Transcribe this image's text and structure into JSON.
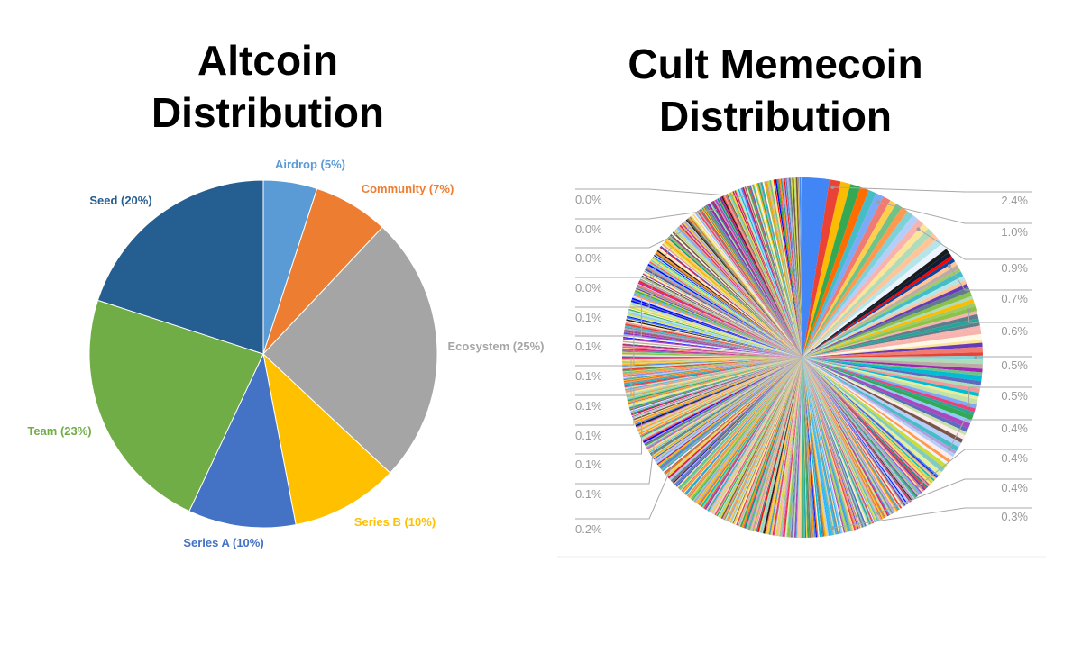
{
  "titles": {
    "left_line1": "Altcoin",
    "left_line2": "Distribution",
    "right_line1": "Cult Memecoin",
    "right_line2": "Distribution"
  },
  "chart_data": [
    {
      "type": "pie",
      "title": "Altcoin Distribution",
      "slices": [
        {
          "label": "Airdrop (5%)",
          "value": 5,
          "color": "#5b9bd5"
        },
        {
          "label": "Community (7%)",
          "value": 7,
          "color": "#ed7d31"
        },
        {
          "label": "Ecosystem (25%)",
          "value": 25,
          "color": "#a5a5a5"
        },
        {
          "label": "Series B (10%)",
          "value": 10,
          "color": "#ffc000"
        },
        {
          "label": "Series A (10%)",
          "value": 10,
          "color": "#4472c4"
        },
        {
          "label": "Team (23%)",
          "value": 23,
          "color": "#70ad47"
        },
        {
          "label": "Seed (20%)",
          "value": 20,
          "color": "#255e91"
        }
      ]
    },
    {
      "type": "pie",
      "title": "Cult Memecoin Distribution",
      "right_labels": [
        "2.4%",
        "1.0%",
        "0.9%",
        "0.7%",
        "0.6%",
        "0.5%",
        "0.5%",
        "0.4%",
        "0.4%",
        "0.4%",
        "0.3%"
      ],
      "left_labels": [
        "0.0%",
        "0.0%",
        "0.0%",
        "0.0%",
        "0.1%",
        "0.1%",
        "0.1%",
        "0.1%",
        "0.1%",
        "0.1%",
        "0.1%",
        "0.2%"
      ],
      "palette": [
        "#4285f4",
        "#ea4335",
        "#fbbc04",
        "#34a853",
        "#ff6d01",
        "#46bdc6",
        "#7baaf7",
        "#f07b72",
        "#fcd04f",
        "#71c287",
        "#ff994d",
        "#7ed1d7",
        "#b3cefb",
        "#f7b4ae",
        "#fde49b",
        "#aedcba",
        "#ffc599",
        "#b5e5e8",
        "#ecf3fe",
        "#fdeceb",
        "#fff8e6",
        "#1a1a1a",
        "#ff0000",
        "#0000ff",
        "#9c27b0",
        "#e91e63",
        "#00bcd4",
        "#8bc34a",
        "#cddc39",
        "#795548",
        "#607d8b",
        "#3f51b5",
        "#ff9800",
        "#009688",
        "#673ab7",
        "#c2185b",
        "#d4e157",
        "#26a69a",
        "#ab47bc",
        "#ec407a",
        "#5c6bc0",
        "#29b6f6",
        "#9ccc65",
        "#ffca28",
        "#8d6e63",
        "#78909c",
        "#f48fb1",
        "#ce93d8",
        "#b39ddb",
        "#90caf9",
        "#80cbc4",
        "#c5e1a5",
        "#ffe082",
        "#bcaaa4",
        "#e6ee9c",
        "#ef9a9a"
      ]
    }
  ]
}
